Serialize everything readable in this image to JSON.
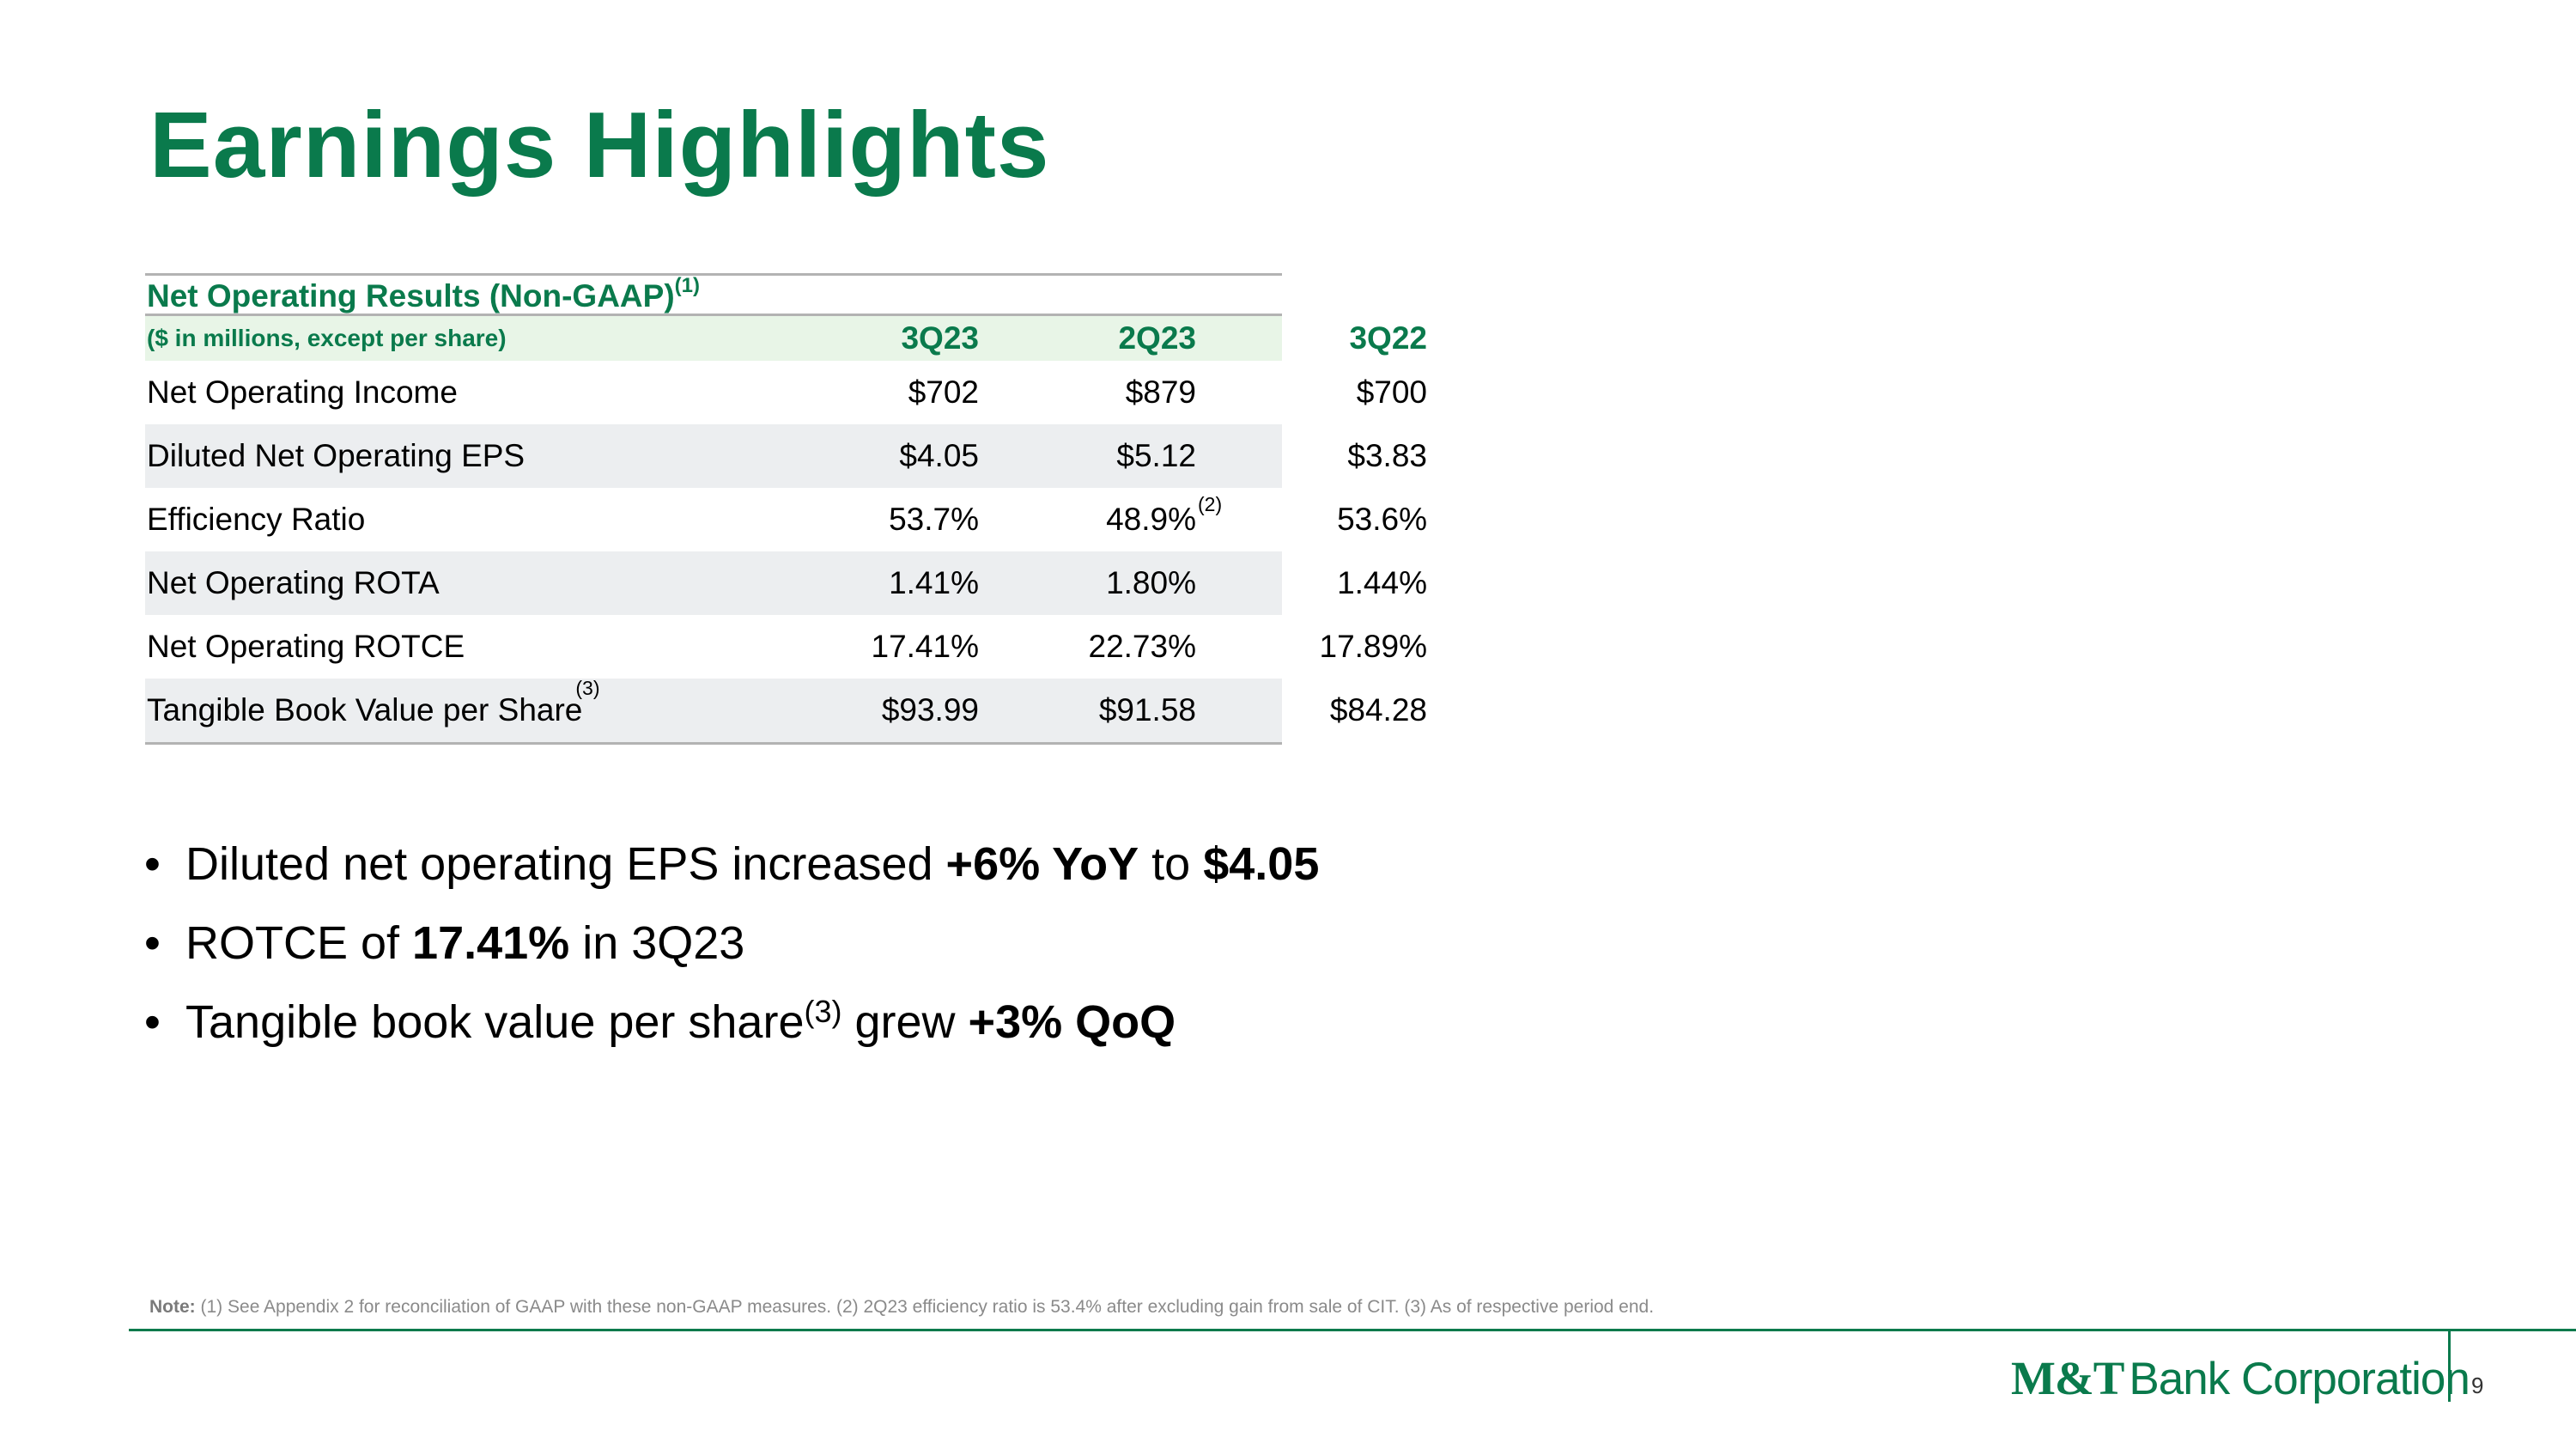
{
  "title": "Earnings Highlights",
  "table": {
    "heading": "Net Operating Results (Non-GAAP)",
    "heading_note": "(1)",
    "unit_label": "($ in millions, except per share)",
    "columns": [
      "3Q23",
      "2Q23",
      "3Q22"
    ],
    "rows": [
      {
        "label": "Net Operating Income",
        "label_note": "",
        "values": [
          "$702",
          "$879",
          "$700"
        ],
        "notes": [
          "",
          "",
          ""
        ]
      },
      {
        "label": "Diluted Net Operating EPS",
        "label_note": "",
        "values": [
          "$4.05",
          "$5.12",
          "$3.83"
        ],
        "notes": [
          "",
          "",
          ""
        ]
      },
      {
        "label": "Efficiency Ratio",
        "label_note": "",
        "values": [
          "53.7%",
          "48.9%",
          "53.6%"
        ],
        "notes": [
          "",
          "(2)",
          ""
        ]
      },
      {
        "label": "Net Operating ROTA",
        "label_note": "",
        "values": [
          "1.41%",
          "1.80%",
          "1.44%"
        ],
        "notes": [
          "",
          "",
          ""
        ]
      },
      {
        "label": "Net Operating ROTCE",
        "label_note": "",
        "values": [
          "17.41%",
          "22.73%",
          "17.89%"
        ],
        "notes": [
          "",
          "",
          ""
        ]
      },
      {
        "label": "Tangible Book Value per Share",
        "label_note": "(3)",
        "values": [
          "$93.99",
          "$91.58",
          "$84.28"
        ],
        "notes": [
          "",
          "",
          ""
        ]
      }
    ]
  },
  "bullets": [
    {
      "parts": [
        "Diluted net operating EPS increased ",
        "+6% YoY",
        " to ",
        "$4.05"
      ]
    },
    {
      "parts": [
        "ROTCE of ",
        "17.41%",
        " in 3Q23"
      ]
    },
    {
      "parts": [
        "Tangible book value per share",
        "(3)",
        " grew ",
        "+3% QoQ"
      ]
    }
  ],
  "bullet_symbol": "•",
  "note": {
    "label": "Note:",
    "text": " (1) See Appendix 2 for reconciliation of GAAP with these non-GAAP measures. (2) 2Q23 efficiency ratio is 53.4% after excluding gain from sale of CIT. (3) As of respective period end."
  },
  "logo": {
    "mark": "M&T",
    "text": "Bank Corporation"
  },
  "page_number": "9",
  "colors": {
    "brand_green": "#0a7a4c",
    "header_fill": "#e8f5e7",
    "row_shade": "#eceef0"
  }
}
